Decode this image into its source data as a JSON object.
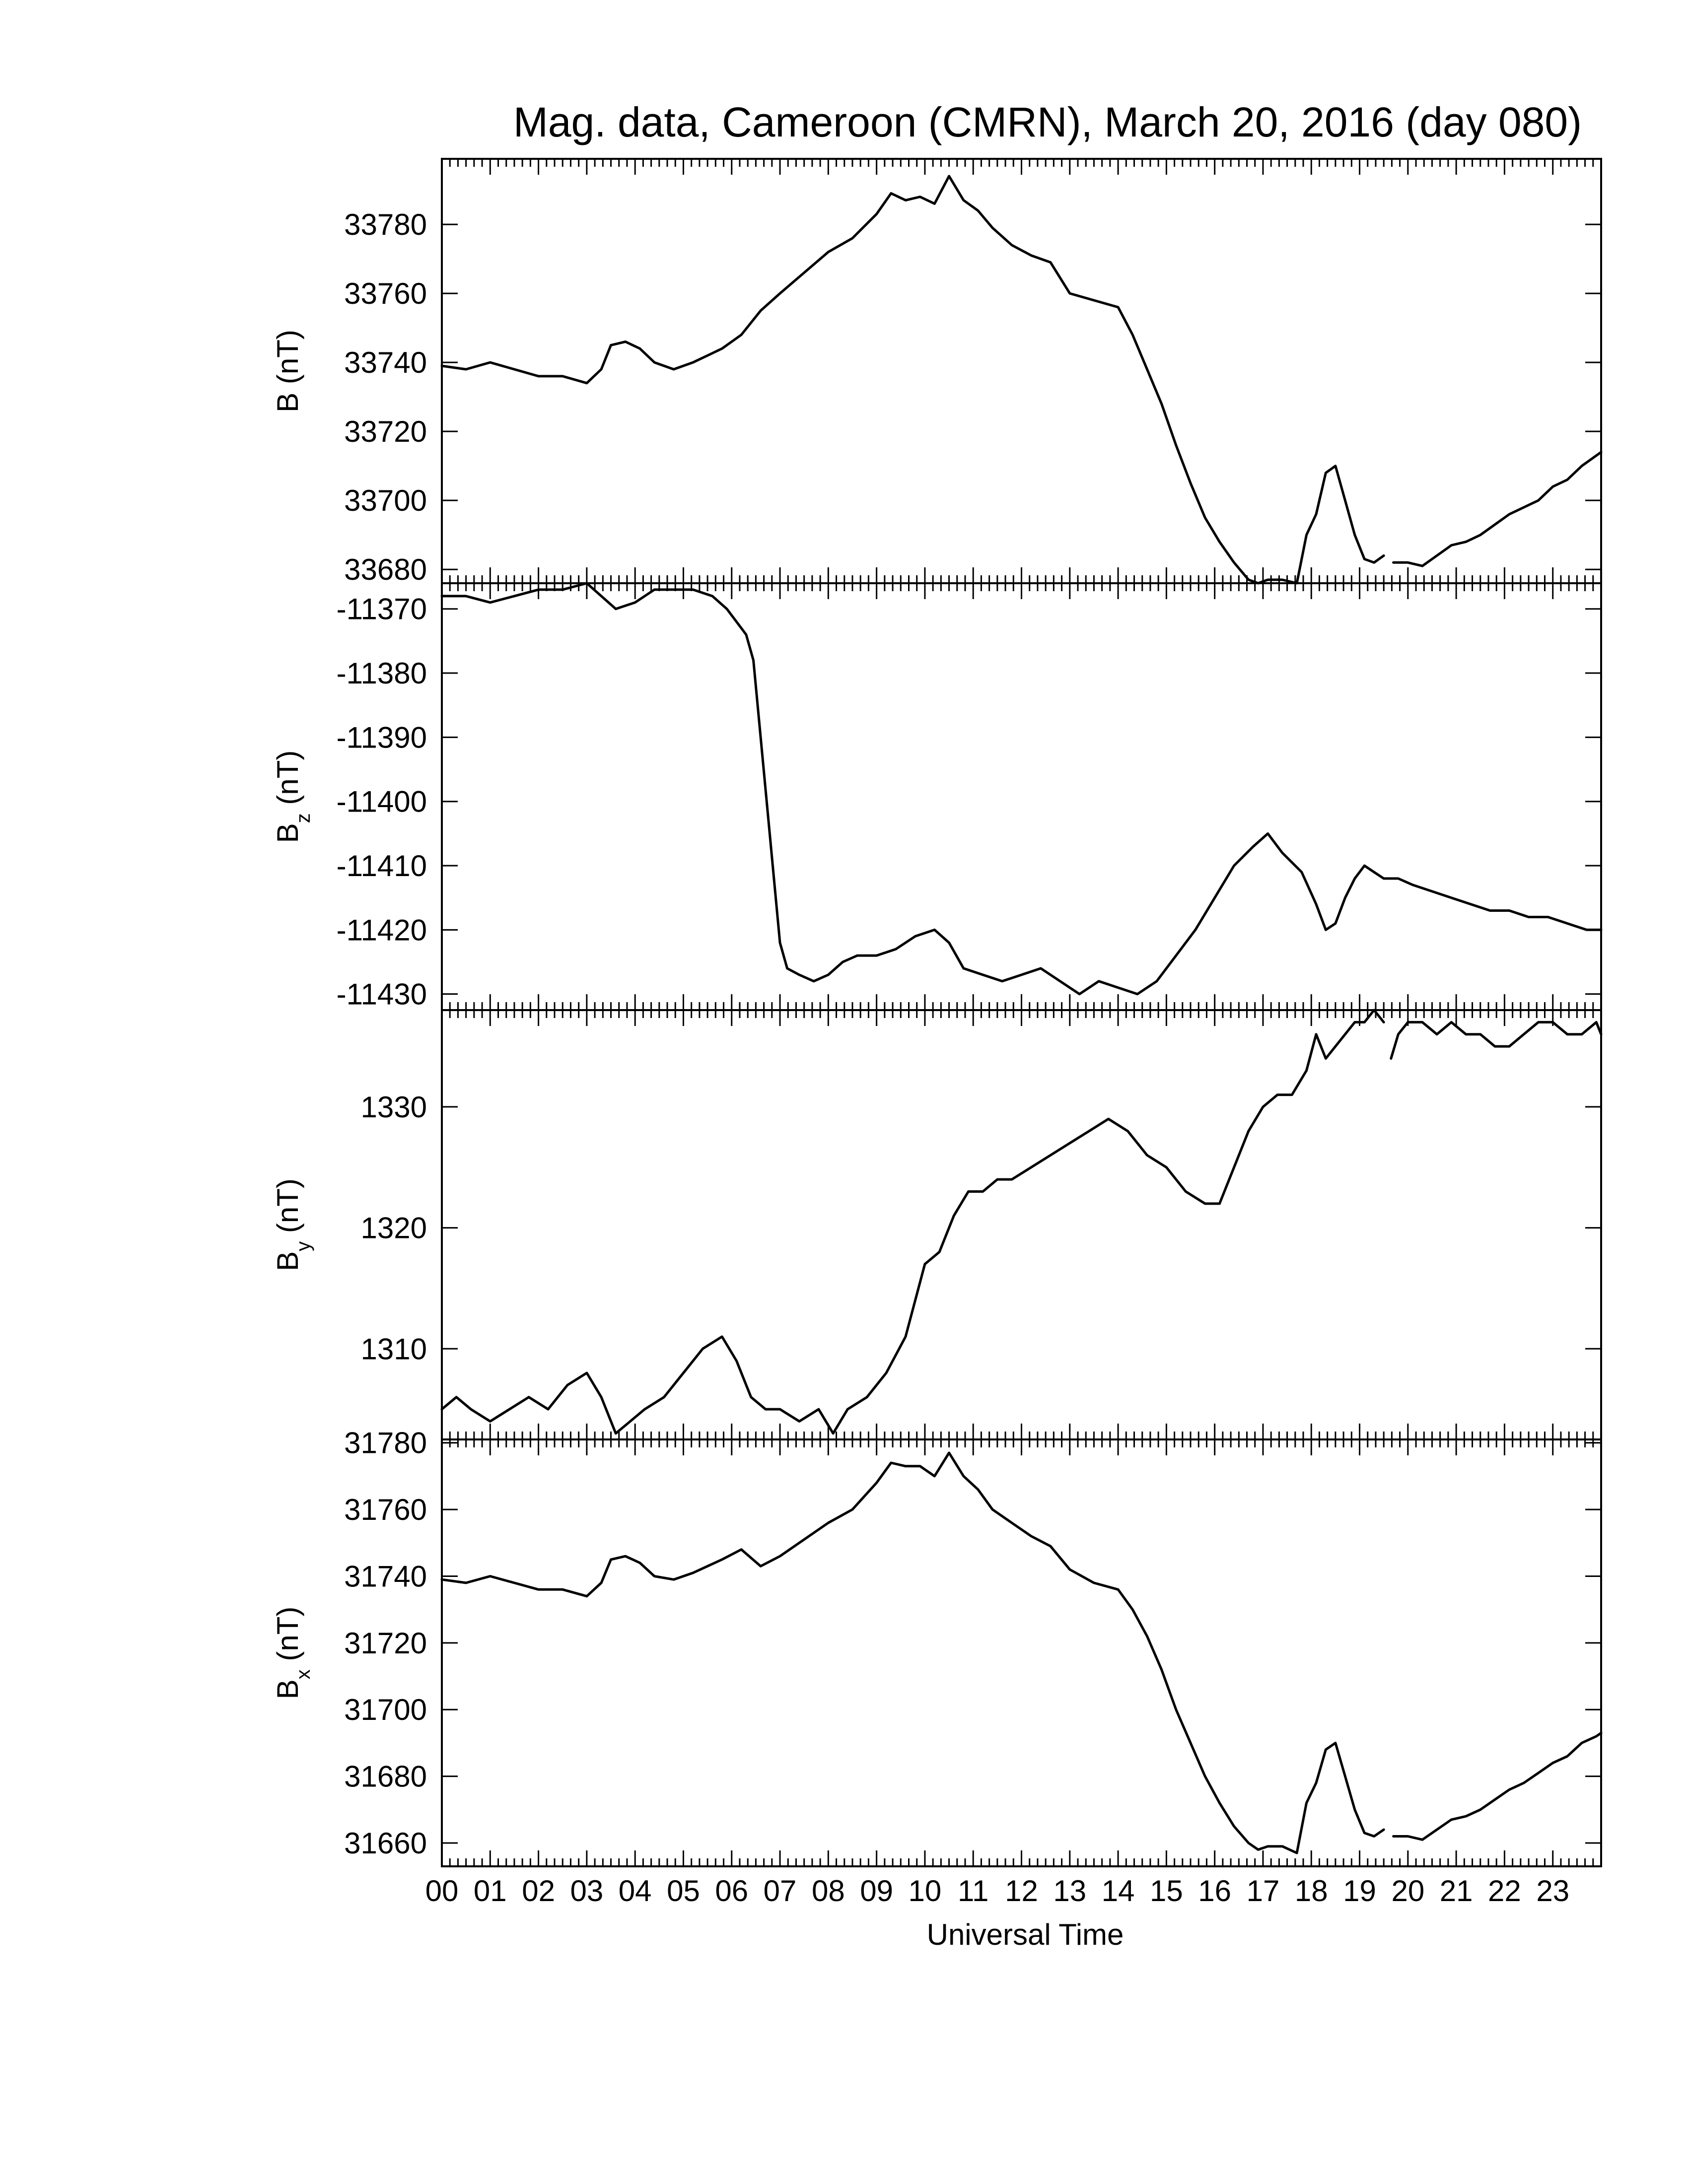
{
  "chart_data": {
    "type": "line",
    "title": "Mag. data, Cameroon (CMRN), March 20, 2016 (day 080)",
    "xlabel": "Universal Time",
    "x_ticks": [
      "00",
      "01",
      "02",
      "03",
      "04",
      "05",
      "06",
      "07",
      "08",
      "09",
      "10",
      "11",
      "12",
      "13",
      "14",
      "15",
      "16",
      "17",
      "18",
      "19",
      "20",
      "21",
      "22",
      "23"
    ],
    "xlim": [
      0,
      24
    ],
    "panels": [
      {
        "id": "B",
        "ylabel": "B (nT)",
        "ylabel_main": "B",
        "ylabel_sub": "",
        "ylabel_unit": " (nT)",
        "ylim": [
          33676,
          33799
        ],
        "yticks": [
          33680,
          33700,
          33720,
          33740,
          33760,
          33780
        ],
        "series": [
          {
            "x": [
              0,
              0.5,
              1,
              1.5,
              2,
              2.5,
              3,
              3.3,
              3.5,
              3.8,
              4.1,
              4.4,
              4.8,
              5.2,
              5.5,
              5.8,
              6.2,
              6.6,
              7,
              7.5,
              8,
              8.5,
              9,
              9.3,
              9.6,
              9.9,
              10.2,
              10.5,
              10.8,
              11.1,
              11.4,
              11.8,
              12.2,
              12.6,
              13,
              13.5,
              14,
              14.3,
              14.6,
              14.9,
              15.2,
              15.5,
              15.8,
              16.1,
              16.4,
              16.7,
              16.9,
              17.1,
              17.4,
              17.7,
              17.9,
              18.1,
              18.3,
              18.5,
              18.7,
              18.9,
              19.1,
              19.3,
              19.5
            ],
            "y": [
              33739,
              33738,
              33740,
              33738,
              33736,
              33736,
              33734,
              33738,
              33745,
              33746,
              33744,
              33740,
              33738,
              33740,
              33742,
              33744,
              33748,
              33755,
              33760,
              33766,
              33772,
              33776,
              33783,
              33789,
              33787,
              33788,
              33786,
              33794,
              33787,
              33784,
              33779,
              33774,
              33771,
              33769,
              33760,
              33758,
              33756,
              33748,
              33738,
              33728,
              33716,
              33705,
              33695,
              33688,
              33682,
              33677,
              33676,
              33677,
              33677,
              33676,
              33690,
              33696,
              33708,
              33710,
              33700,
              33690,
              33683,
              33682,
              33684
            ]
          },
          {
            "x": [
              19.7,
              20,
              20.3,
              20.6,
              20.9,
              21.2,
              21.5,
              21.8,
              22.1,
              22.4,
              22.7,
              23,
              23.3,
              23.6,
              23.9,
              24
            ],
            "y": [
              33682,
              33682,
              33681,
              33684,
              33687,
              33688,
              33690,
              33693,
              33696,
              33698,
              33700,
              33704,
              33706,
              33710,
              33713,
              33714
            ]
          }
        ]
      },
      {
        "id": "Bz",
        "ylabel": "Bz (nT)",
        "ylabel_main": "B",
        "ylabel_sub": "z",
        "ylabel_unit": " (nT)",
        "ylim": [
          -11432.5,
          -11366
        ],
        "yticks": [
          -11370,
          -11380,
          -11390,
          -11400,
          -11410,
          -11420,
          -11430
        ],
        "series": [
          {
            "x": [
              0,
              0.5,
              1,
              1.5,
              2,
              2.5,
              3,
              3.3,
              3.6,
              4,
              4.4,
              4.8,
              5.2,
              5.6,
              5.9,
              6.1,
              6.3,
              6.45,
              6.6,
              6.75,
              6.9,
              7.0,
              7.15,
              7.4,
              7.7,
              8,
              8.3,
              8.6,
              9,
              9.4,
              9.8,
              10.2,
              10.5,
              10.8,
              11.2,
              11.6,
              12,
              12.4,
              12.8,
              13.2,
              13.6,
              14,
              14.4,
              14.8,
              15.2,
              15.6,
              16,
              16.4,
              16.8,
              17.1,
              17.4,
              17.8,
              18.1,
              18.3,
              18.5,
              18.7,
              18.9,
              19.1,
              19.3,
              19.5,
              19.8,
              20.1,
              20.5,
              20.9,
              21.3,
              21.7,
              22.1,
              22.5,
              22.9,
              23.3,
              23.7,
              24
            ],
            "y": [
              -11368,
              -11368,
              -11369,
              -11368,
              -11367,
              -11367,
              -11366,
              -11368,
              -11370,
              -11369,
              -11367,
              -11367,
              -11367,
              -11368,
              -11370,
              -11372,
              -11374,
              -11378,
              -11390,
              -11402,
              -11414,
              -11422,
              -11426,
              -11427,
              -11428,
              -11427,
              -11425,
              -11424,
              -11424,
              -11423,
              -11421,
              -11420,
              -11422,
              -11426,
              -11427,
              -11428,
              -11427,
              -11426,
              -11428,
              -11430,
              -11428,
              -11429,
              -11430,
              -11428,
              -11424,
              -11420,
              -11415,
              -11410,
              -11407,
              -11405,
              -11408,
              -11411,
              -11416,
              -11420,
              -11419,
              -11415,
              -11412,
              -11410,
              -11411,
              -11412,
              -11412,
              -11413,
              -11414,
              -11415,
              -11416,
              -11417,
              -11417,
              -11418,
              -11418,
              -11419,
              -11420,
              -11420
            ]
          }
        ]
      },
      {
        "id": "By",
        "ylabel": "By (nT)",
        "ylabel_main": "B",
        "ylabel_sub": "y",
        "ylabel_unit": " (nT)",
        "ylim": [
          1302.5,
          1338
        ],
        "yticks": [
          1310,
          1320,
          1330
        ],
        "series": [
          {
            "x": [
              0,
              0.3,
              0.6,
              1,
              1.4,
              1.8,
              2.2,
              2.6,
              3,
              3.3,
              3.6,
              3.9,
              4.2,
              4.6,
              5,
              5.4,
              5.8,
              6.1,
              6.4,
              6.7,
              7,
              7.4,
              7.8,
              8.1,
              8.4,
              8.8,
              9.2,
              9.6,
              10,
              10.3,
              10.6,
              10.9,
              11.2,
              11.5,
              11.8,
              12.2,
              12.6,
              13,
              13.4,
              13.8,
              14.2,
              14.6,
              15,
              15.4,
              15.8,
              16.1,
              16.4,
              16.7,
              17,
              17.3,
              17.6,
              17.9,
              18.1,
              18.3,
              18.5,
              18.7,
              18.9,
              19.1,
              19.3,
              19.5
            ],
            "y": [
              1305,
              1306,
              1305,
              1304,
              1305,
              1306,
              1305,
              1307,
              1308,
              1306,
              1303,
              1304,
              1305,
              1306,
              1308,
              1310,
              1311,
              1309,
              1306,
              1305,
              1305,
              1304,
              1305,
              1303,
              1305,
              1306,
              1308,
              1311,
              1317,
              1318,
              1321,
              1323,
              1323,
              1324,
              1324,
              1325,
              1326,
              1327,
              1328,
              1329,
              1328,
              1326,
              1325,
              1323,
              1322,
              1322,
              1325,
              1328,
              1330,
              1331,
              1331,
              1333,
              1336,
              1334,
              1335,
              1336,
              1337,
              1337,
              1338,
              1337
            ]
          },
          {
            "x": [
              19.65,
              19.8,
              20,
              20.3,
              20.6,
              20.9,
              21.2,
              21.5,
              21.8,
              22.1,
              22.4,
              22.7,
              23,
              23.3,
              23.6,
              23.9,
              24
            ],
            "y": [
              1334,
              1336,
              1337,
              1337,
              1336,
              1337,
              1336,
              1336,
              1335,
              1335,
              1336,
              1337,
              1337,
              1336,
              1336,
              1337,
              1336
            ]
          }
        ]
      },
      {
        "id": "Bx",
        "ylabel": "Bx (nT)",
        "ylabel_main": "B",
        "ylabel_sub": "x",
        "ylabel_unit": " (nT)",
        "ylim": [
          31653,
          31781
        ],
        "yticks": [
          31660,
          31680,
          31700,
          31720,
          31740,
          31760,
          31780
        ],
        "series": [
          {
            "x": [
              0,
              0.5,
              1,
              1.5,
              2,
              2.5,
              3,
              3.3,
              3.5,
              3.8,
              4.1,
              4.4,
              4.8,
              5.2,
              5.5,
              5.8,
              6.2,
              6.6,
              7,
              7.5,
              8,
              8.5,
              9,
              9.3,
              9.6,
              9.9,
              10.2,
              10.5,
              10.8,
              11.1,
              11.4,
              11.8,
              12.2,
              12.6,
              13,
              13.5,
              14,
              14.3,
              14.6,
              14.9,
              15.2,
              15.5,
              15.8,
              16.1,
              16.4,
              16.7,
              16.9,
              17.1,
              17.4,
              17.7,
              17.9,
              18.1,
              18.3,
              18.5,
              18.7,
              18.9,
              19.1,
              19.3,
              19.5
            ],
            "y": [
              31739,
              31738,
              31740,
              31738,
              31736,
              31736,
              31734,
              31738,
              31745,
              31746,
              31744,
              31740,
              31739,
              31741,
              31743,
              31745,
              31748,
              31743,
              31746,
              31751,
              31756,
              31760,
              31768,
              31774,
              31773,
              31773,
              31770,
              31777,
              31770,
              31766,
              31760,
              31756,
              31752,
              31749,
              31742,
              31738,
              31736,
              31730,
              31722,
              31712,
              31700,
              31690,
              31680,
              31672,
              31665,
              31660,
              31658,
              31659,
              31659,
              31657,
              31672,
              31678,
              31688,
              31690,
              31680,
              31670,
              31663,
              31662,
              31664
            ]
          },
          {
            "x": [
              19.7,
              20,
              20.3,
              20.6,
              20.9,
              21.2,
              21.5,
              21.8,
              22.1,
              22.4,
              22.7,
              23,
              23.3,
              23.6,
              23.9,
              24
            ],
            "y": [
              31662,
              31662,
              31661,
              31664,
              31667,
              31668,
              31670,
              31673,
              31676,
              31678,
              31681,
              31684,
              31686,
              31690,
              31692,
              31693
            ]
          }
        ]
      }
    ]
  }
}
